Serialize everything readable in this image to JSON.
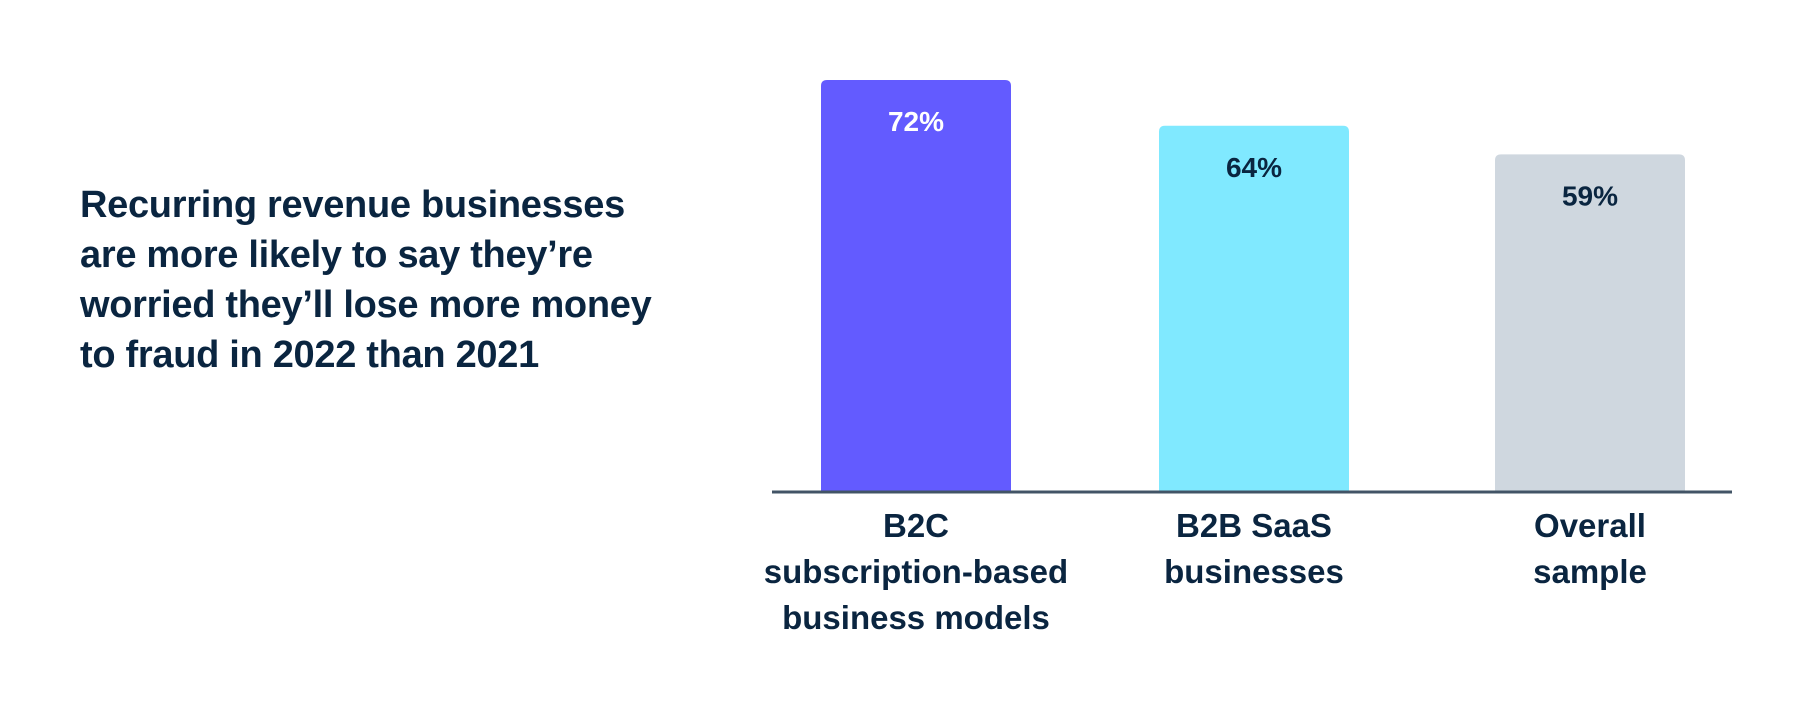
{
  "headline": "Recurring revenue businesses are more likely to say they’re worried they’ll lose more money to fraud in 2022 than 2021",
  "chart_data": {
    "type": "bar",
    "title": "Recurring revenue businesses are more likely to say they’re worried they’ll lose more money to fraud in 2022 than 2021",
    "xlabel": "",
    "ylabel": "",
    "ylim": [
      0,
      72
    ],
    "grid": false,
    "categories": [
      [
        "B2C",
        "subscription-based",
        "business models"
      ],
      [
        "B2B SaaS",
        "businesses"
      ],
      [
        "Overall",
        "sample"
      ]
    ],
    "values": [
      72,
      64,
      59
    ],
    "data_labels": [
      "72%",
      "64%",
      "59%"
    ],
    "colors": [
      "#635bff",
      "#80e9ff",
      "#cfd7df"
    ],
    "label_colors": [
      "#ffffff",
      "#0a2540",
      "#0a2540"
    ],
    "axis_color": "#425466"
  }
}
